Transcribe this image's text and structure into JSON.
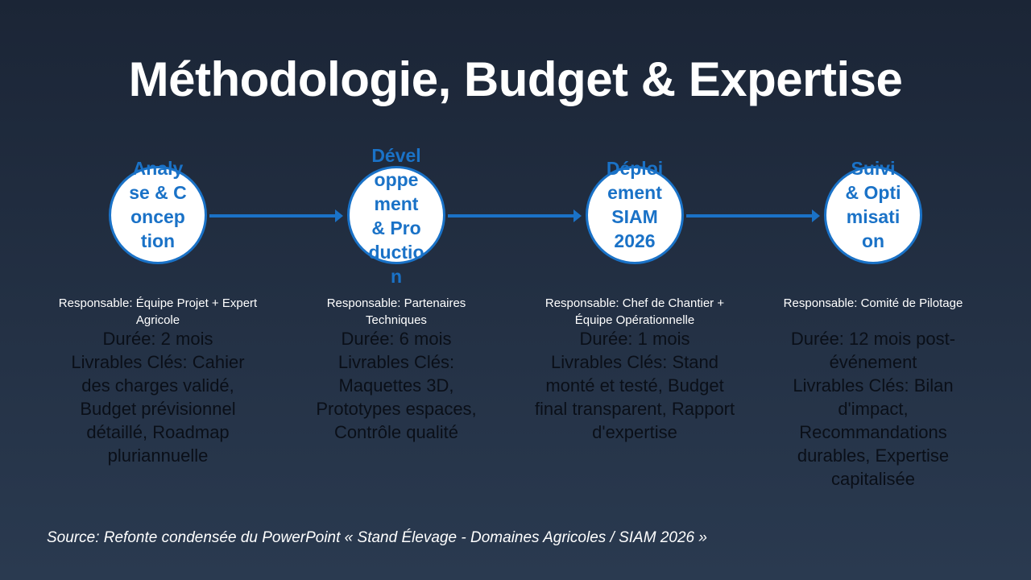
{
  "title": "Méthodologie, Budget & Expertise",
  "steps": [
    {
      "name": "Analyse & Conception",
      "owner": "Responsable: Équipe Projet + Expert Agricole",
      "duration": "Durée: 2 mois",
      "deliverables": "Livrables Clés: Cahier des charges validé, Budget prévisionnel détaillé, Roadmap pluriannuelle"
    },
    {
      "name": "Développement & Production",
      "owner": "Responsable: Partenaires Techniques",
      "duration": "Durée: 6 mois",
      "deliverables": "Livrables Clés: Maquettes 3D, Prototypes espaces, Contrôle qualité"
    },
    {
      "name": "Déploiement SIAM 2026",
      "owner": "Responsable: Chef de Chantier + Équipe Opérationnelle",
      "duration": "Durée: 1 mois",
      "deliverables": "Livrables Clés: Stand monté et testé, Budget final transparent, Rapport d'expertise"
    },
    {
      "name": "Suivi & Optimisation",
      "owner": "Responsable: Comité de Pilotage",
      "duration": "Durée: 12 mois post-événement",
      "deliverables": "Livrables Clés: Bilan d'impact, Recommandations durables, Expertise capitalisée"
    }
  ],
  "source": "Source: Refonte condensée du PowerPoint « Stand Élevage - Domaines Agricoles / SIAM 2026 »",
  "colors": {
    "accent": "#1a72c7",
    "circle_fill": "#ffffff",
    "details_text": "#0a0f18"
  }
}
